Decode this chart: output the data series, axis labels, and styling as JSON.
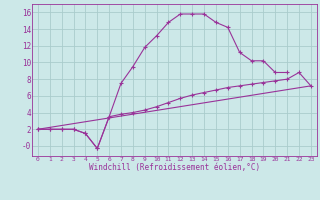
{
  "xlabel": "Windchill (Refroidissement éolien,°C)",
  "bg_color": "#cce8e8",
  "grid_color": "#aacccc",
  "line_color": "#993399",
  "spine_color": "#993399",
  "xlim": [
    -0.5,
    23.5
  ],
  "ylim": [
    -1.2,
    17
  ],
  "xticks": [
    0,
    1,
    2,
    3,
    4,
    5,
    6,
    7,
    8,
    9,
    10,
    11,
    12,
    13,
    14,
    15,
    16,
    17,
    18,
    19,
    20,
    21,
    22,
    23
  ],
  "yticks": [
    0,
    2,
    4,
    6,
    8,
    10,
    12,
    14,
    16
  ],
  "ytick_labels": [
    "-0",
    "2",
    "4",
    "6",
    "8",
    "10",
    "12",
    "14",
    "16"
  ],
  "line1_x": [
    0,
    1,
    2,
    3,
    4,
    5,
    6,
    7,
    8,
    9,
    10,
    11,
    12,
    13,
    14,
    15,
    16,
    17,
    18,
    19,
    20,
    21
  ],
  "line1_y": [
    2,
    2,
    2,
    2,
    1.5,
    -0.3,
    3.5,
    7.5,
    9.5,
    11.8,
    13.2,
    14.8,
    15.8,
    15.8,
    15.8,
    14.8,
    14.2,
    11.2,
    10.2,
    10.2,
    8.8,
    8.8
  ],
  "line2_x": [
    0,
    1,
    2,
    3,
    4,
    5,
    6,
    7,
    8,
    9,
    10,
    11,
    12,
    13,
    14,
    15,
    16,
    17,
    18,
    19,
    20,
    21,
    22,
    23
  ],
  "line2_y": [
    2,
    2,
    2,
    2,
    1.5,
    -0.3,
    3.5,
    3.8,
    4.0,
    4.3,
    4.7,
    5.2,
    5.7,
    6.1,
    6.4,
    6.7,
    7.0,
    7.2,
    7.4,
    7.6,
    7.8,
    8.0,
    8.8,
    7.2
  ],
  "line3_x": [
    0,
    23
  ],
  "line3_y": [
    2,
    7.2
  ]
}
